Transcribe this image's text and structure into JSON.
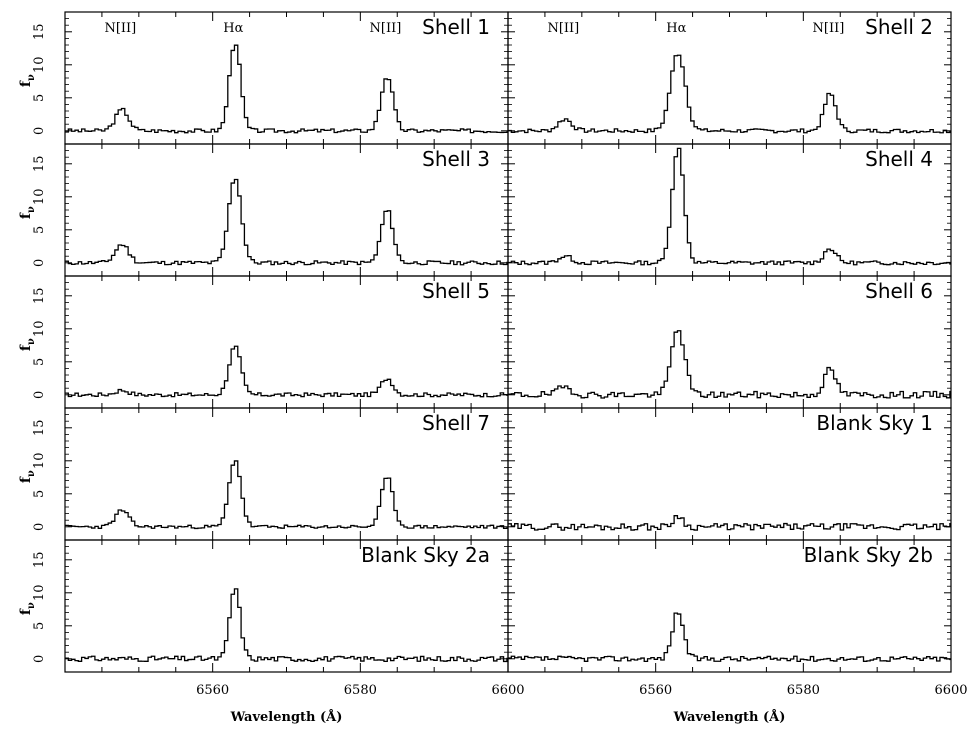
{
  "figure": {
    "xlabel": "Wavelength (Å)",
    "ylabel": "f",
    "ylabel_sub": "ν"
  },
  "chart_data": [
    {
      "type": "line",
      "title": "Shell 1",
      "xlim": [
        6540,
        6600
      ],
      "ylim": [
        -2,
        18
      ],
      "xticks": [
        6560,
        6580,
        6600
      ],
      "yticks": [
        0,
        5,
        10,
        15
      ],
      "annotations": [
        {
          "text": "N[II]",
          "x": 6547.5
        },
        {
          "text": "Hα",
          "x": 6562.8
        },
        {
          "text": "N[II]",
          "x": 6583.4
        }
      ],
      "lines": [
        {
          "center": 6547.5,
          "amp": 3.2,
          "width": 0.9
        },
        {
          "center": 6562.8,
          "amp": 13.5,
          "width": 0.75
        },
        {
          "center": 6583.4,
          "amp": 8.3,
          "width": 0.8
        }
      ],
      "noise": 0.3,
      "seed": 3
    },
    {
      "type": "line",
      "title": "Shell 2",
      "xlim": [
        6540,
        6600
      ],
      "ylim": [
        -2,
        18
      ],
      "xticks": [
        6560,
        6580,
        6600
      ],
      "yticks": [
        0,
        5,
        10,
        15
      ],
      "annotations": [
        {
          "text": "N[II]",
          "x": 6547.5
        },
        {
          "text": "Hα",
          "x": 6562.8
        },
        {
          "text": "N[II]",
          "x": 6583.4
        }
      ],
      "lines": [
        {
          "center": 6547.5,
          "amp": 1.8,
          "width": 0.9
        },
        {
          "center": 6562.8,
          "amp": 11.8,
          "width": 1.0
        },
        {
          "center": 6583.4,
          "amp": 5.6,
          "width": 0.8
        }
      ],
      "noise": 0.3,
      "seed": 7
    },
    {
      "type": "line",
      "title": "Shell 3",
      "xlim": [
        6540,
        6600
      ],
      "ylim": [
        -2,
        18
      ],
      "xticks": [
        6560,
        6580,
        6600
      ],
      "yticks": [
        0,
        5,
        10,
        15
      ],
      "annotations": [],
      "lines": [
        {
          "center": 6547.5,
          "amp": 2.8,
          "width": 0.9
        },
        {
          "center": 6562.8,
          "amp": 13.0,
          "width": 0.85
        },
        {
          "center": 6583.4,
          "amp": 8.0,
          "width": 0.8
        }
      ],
      "noise": 0.3,
      "seed": 11
    },
    {
      "type": "line",
      "title": "Shell 4",
      "xlim": [
        6540,
        6600
      ],
      "ylim": [
        -2,
        18
      ],
      "xticks": [
        6560,
        6580,
        6600
      ],
      "yticks": [
        0,
        5,
        10,
        15
      ],
      "annotations": [],
      "lines": [
        {
          "center": 6547.5,
          "amp": 1.0,
          "width": 0.9
        },
        {
          "center": 6562.8,
          "amp": 17.5,
          "width": 0.8
        },
        {
          "center": 6583.4,
          "amp": 2.2,
          "width": 0.8
        }
      ],
      "noise": 0.3,
      "seed": 13
    },
    {
      "type": "line",
      "title": "Shell 5",
      "xlim": [
        6540,
        6600
      ],
      "ylim": [
        -2,
        18
      ],
      "xticks": [
        6560,
        6580,
        6600
      ],
      "yticks": [
        0,
        5,
        10,
        15
      ],
      "annotations": [],
      "lines": [
        {
          "center": 6547.5,
          "amp": 0.7,
          "width": 0.9
        },
        {
          "center": 6562.8,
          "amp": 7.3,
          "width": 0.8
        },
        {
          "center": 6583.4,
          "amp": 2.5,
          "width": 0.8
        }
      ],
      "noise": 0.3,
      "seed": 17
    },
    {
      "type": "line",
      "title": "Shell 6",
      "xlim": [
        6540,
        6600
      ],
      "ylim": [
        -2,
        18
      ],
      "xticks": [
        6560,
        6580,
        6600
      ],
      "yticks": [
        0,
        5,
        10,
        15
      ],
      "annotations": [],
      "lines": [
        {
          "center": 6547.5,
          "amp": 1.2,
          "width": 0.9
        },
        {
          "center": 6562.8,
          "amp": 10.0,
          "width": 0.9
        },
        {
          "center": 6583.4,
          "amp": 3.8,
          "width": 0.8
        }
      ],
      "noise": 0.5,
      "seed": 19
    },
    {
      "type": "line",
      "title": "Shell 7",
      "xlim": [
        6540,
        6600
      ],
      "ylim": [
        -2,
        18
      ],
      "xticks": [
        6560,
        6580,
        6600
      ],
      "yticks": [
        0,
        5,
        10,
        15
      ],
      "annotations": [],
      "lines": [
        {
          "center": 6547.5,
          "amp": 2.5,
          "width": 0.9
        },
        {
          "center": 6562.8,
          "amp": 10.2,
          "width": 0.8
        },
        {
          "center": 6583.4,
          "amp": 7.5,
          "width": 0.8
        }
      ],
      "noise": 0.25,
      "seed": 23
    },
    {
      "type": "line",
      "title": "Blank Sky 1",
      "xlim": [
        6540,
        6600
      ],
      "ylim": [
        -2,
        18
      ],
      "xticks": [
        6560,
        6580,
        6600
      ],
      "yticks": [
        0,
        5,
        10,
        15
      ],
      "annotations": [],
      "lines": [
        {
          "center": 6562.8,
          "amp": 1.8,
          "width": 0.6
        }
      ],
      "noise": 0.5,
      "seed": 29
    },
    {
      "type": "line",
      "title": "Blank Sky 2a",
      "xlim": [
        6540,
        6600
      ],
      "ylim": [
        -2,
        18
      ],
      "xticks": [
        6560,
        6580,
        6600
      ],
      "yticks": [
        0,
        5,
        10,
        15
      ],
      "annotations": [],
      "lines": [
        {
          "center": 6562.8,
          "amp": 10.8,
          "width": 0.7
        }
      ],
      "noise": 0.4,
      "seed": 31
    },
    {
      "type": "line",
      "title": "Blank Sky 2b",
      "xlim": [
        6540,
        6600
      ],
      "ylim": [
        -2,
        18
      ],
      "xticks": [
        6560,
        6580,
        6600
      ],
      "yticks": [
        0,
        5,
        10,
        15
      ],
      "annotations": [],
      "lines": [
        {
          "center": 6562.8,
          "amp": 7.2,
          "width": 0.75
        }
      ],
      "noise": 0.4,
      "seed": 37
    }
  ]
}
